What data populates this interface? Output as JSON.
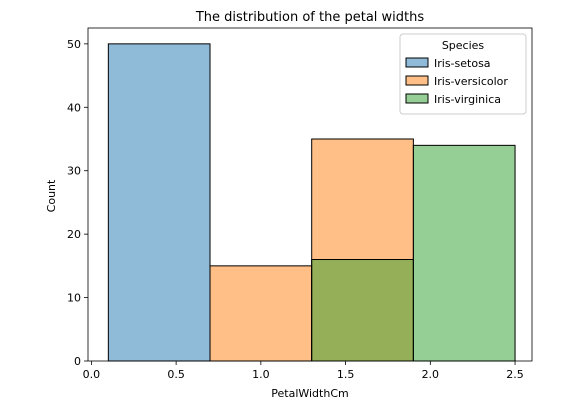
{
  "chart_data": {
    "type": "histogram",
    "title": "The distribution of the petal widths",
    "xlabel": "PetalWidthCm",
    "ylabel": "Count",
    "xlim": [
      -0.02,
      2.6
    ],
    "ylim": [
      0,
      52.5
    ],
    "xticks": [
      "0.0",
      "0.5",
      "1.0",
      "1.5",
      "2.0",
      "2.5"
    ],
    "xtick_values": [
      0.0,
      0.5,
      1.0,
      1.5,
      2.0,
      2.5
    ],
    "yticks": [
      "0",
      "10",
      "20",
      "30",
      "40",
      "50"
    ],
    "ytick_values": [
      0,
      10,
      20,
      30,
      40,
      50
    ],
    "grid": false,
    "legend": {
      "title": "Species",
      "placement": "top-right"
    },
    "bin_edges": [
      0.1,
      0.7,
      1.3,
      1.9,
      2.5
    ],
    "series": [
      {
        "name": "Iris-setosa",
        "color": "#1f77b4",
        "counts": [
          50,
          0,
          0,
          0
        ]
      },
      {
        "name": "Iris-versicolor",
        "color": "#ff7f0e",
        "counts": [
          0,
          15,
          35,
          0
        ]
      },
      {
        "name": "Iris-virginica",
        "color": "#2ca02c",
        "counts": [
          0,
          0,
          16,
          34
        ]
      }
    ]
  }
}
